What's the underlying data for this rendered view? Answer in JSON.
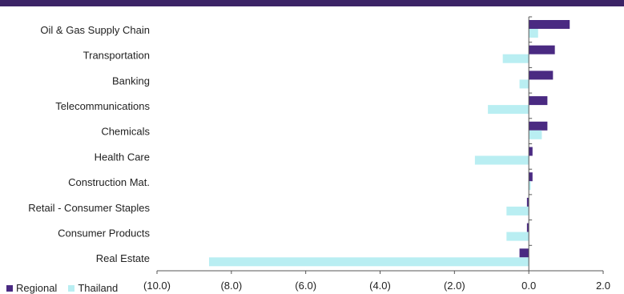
{
  "colors": {
    "regional": "#4a2a82",
    "thailand": "#b9eef2",
    "rule": "#3c2466",
    "axis": "#555555",
    "text": "#222222"
  },
  "chart_data": {
    "type": "bar",
    "orientation": "horizontal",
    "categories": [
      "Oil & Gas Supply Chain",
      "Transportation",
      "Banking",
      "Telecommunications",
      "Chemicals",
      "Health Care",
      "Construction Mat.",
      "Retail - Consumer Staples",
      "Consumer Products",
      "Real Estate"
    ],
    "series": [
      {
        "name": "Regional",
        "values": [
          1.1,
          0.7,
          0.65,
          0.5,
          0.5,
          0.1,
          0.1,
          -0.05,
          -0.05,
          -0.25
        ]
      },
      {
        "name": "Thailand",
        "values": [
          0.25,
          -0.7,
          -0.25,
          -1.1,
          0.35,
          -1.45,
          0.05,
          -0.6,
          -0.6,
          -8.6
        ]
      }
    ],
    "xlim": [
      -10,
      2
    ],
    "xticks": [
      -10,
      -8,
      -6,
      -4,
      -2,
      0,
      2
    ],
    "xtick_labels": [
      "(10.0)",
      "(8.0)",
      "(6.0)",
      "(4.0)",
      "(2.0)",
      "0.0",
      "2.0"
    ],
    "legend_position": "bottom-left"
  }
}
